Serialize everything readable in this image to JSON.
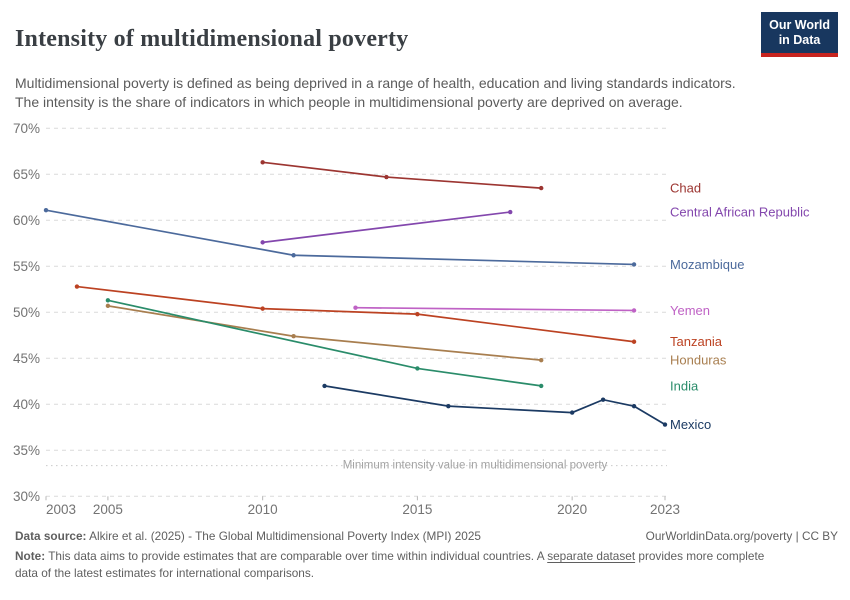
{
  "header": {
    "title": "Intensity of multidimensional poverty",
    "subtitle": "Multidimensional poverty is defined as being deprived in a range of health, education and living standards indicators. The intensity is the share of indicators in which people in multidimensional poverty are deprived on average.",
    "logo": {
      "line1": "Our World",
      "line2": "in Data",
      "bg_color": "#18375F",
      "bar_color": "#c7241f"
    }
  },
  "chart_data": {
    "type": "line",
    "title": "Intensity of multidimensional poverty",
    "unit": "%",
    "xlabel": "",
    "ylabel": "",
    "ylim": [
      30,
      70
    ],
    "xlim": [
      2003,
      2023
    ],
    "grid": true,
    "legend_position": "right-of-line-ends",
    "x_ticks": [
      2003,
      2005,
      2010,
      2015,
      2020,
      2023
    ],
    "y_ticks": [
      30,
      35,
      40,
      45,
      50,
      55,
      60,
      65,
      70
    ],
    "annotation": {
      "label": "Minimum intensity value in multidimensional poverty",
      "value": 33.33
    },
    "series": [
      {
        "name": "Chad",
        "color": "#9C3531",
        "points": [
          [
            2010,
            66.3
          ],
          [
            2014,
            64.7
          ],
          [
            2019,
            63.5
          ]
        ]
      },
      {
        "name": "Central African Republic",
        "color": "#8347AD",
        "points": [
          [
            2010,
            57.6
          ],
          [
            2018,
            60.9
          ]
        ]
      },
      {
        "name": "Mozambique",
        "color": "#4C6A9C",
        "points": [
          [
            2003,
            61.1
          ],
          [
            2011,
            56.2
          ],
          [
            2022,
            55.2
          ]
        ]
      },
      {
        "name": "Yemen",
        "color": "#BF62C5",
        "points": [
          [
            2013,
            50.5
          ],
          [
            2022,
            50.2
          ]
        ]
      },
      {
        "name": "Tanzania",
        "color": "#BC4222",
        "points": [
          [
            2004,
            52.8
          ],
          [
            2010,
            50.4
          ],
          [
            2015,
            49.8
          ],
          [
            2022,
            46.8
          ]
        ]
      },
      {
        "name": "Honduras",
        "color": "#A87E4F",
        "points": [
          [
            2005,
            50.7
          ],
          [
            2011,
            47.4
          ],
          [
            2019,
            44.8
          ]
        ]
      },
      {
        "name": "India",
        "color": "#2A8C6A",
        "points": [
          [
            2005,
            51.3
          ],
          [
            2015,
            43.9
          ],
          [
            2019,
            42.0
          ]
        ]
      },
      {
        "name": "Mexico",
        "color": "#1B3A63",
        "points": [
          [
            2012,
            42.0
          ],
          [
            2016,
            39.8
          ],
          [
            2020,
            39.1
          ],
          [
            2021,
            40.5
          ],
          [
            2022,
            39.8
          ],
          [
            2023,
            37.8
          ]
        ]
      }
    ]
  },
  "footer": {
    "datasource_label": "Data source:",
    "datasource_text": " Alkire et al. (2025) - The Global Multidimensional Poverty Index (MPI) 2025",
    "attribution": "OurWorldinData.org/poverty | CC BY",
    "note_label": "Note:",
    "note_before_link": " This data aims to provide estimates that are comparable over time within individual countries. A ",
    "note_link": "separate dataset",
    "note_after_link": " provides more complete data of the latest estimates for international comparisons."
  }
}
